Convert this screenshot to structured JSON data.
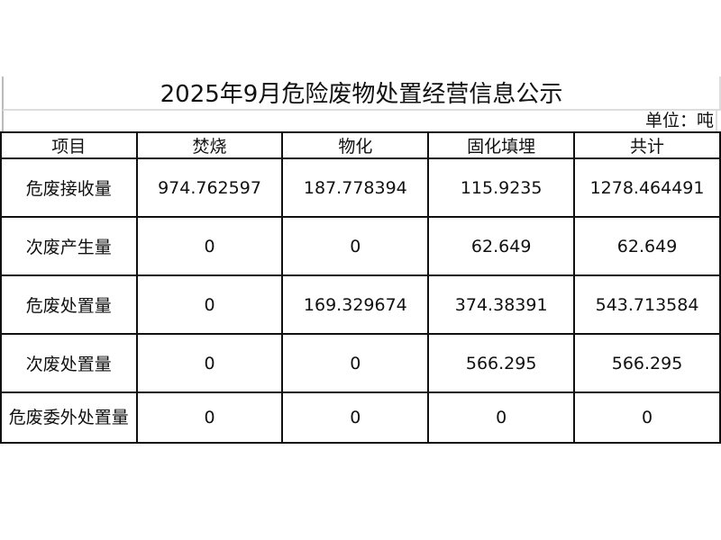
{
  "title": "2025年9月危险废物处置经营信息公示",
  "unit": "单位：吨",
  "headers": [
    "项目",
    "焚烧",
    "物化",
    "固化填埋",
    "共计"
  ],
  "rows": [
    [
      "危废接收量",
      "974.762597",
      "187.778394",
      "115.9235",
      "1278.464491"
    ],
    [
      "次废产生量",
      "0",
      "0",
      "62.649",
      "62.649"
    ],
    [
      "危废处置量",
      "0",
      "169.329674",
      "374.38391",
      "543.713584"
    ],
    [
      "次废处置量",
      "0",
      "0",
      "566.295",
      "566.295"
    ],
    [
      "危废委外处置量",
      "0",
      "0",
      "0",
      "0"
    ]
  ]
}
